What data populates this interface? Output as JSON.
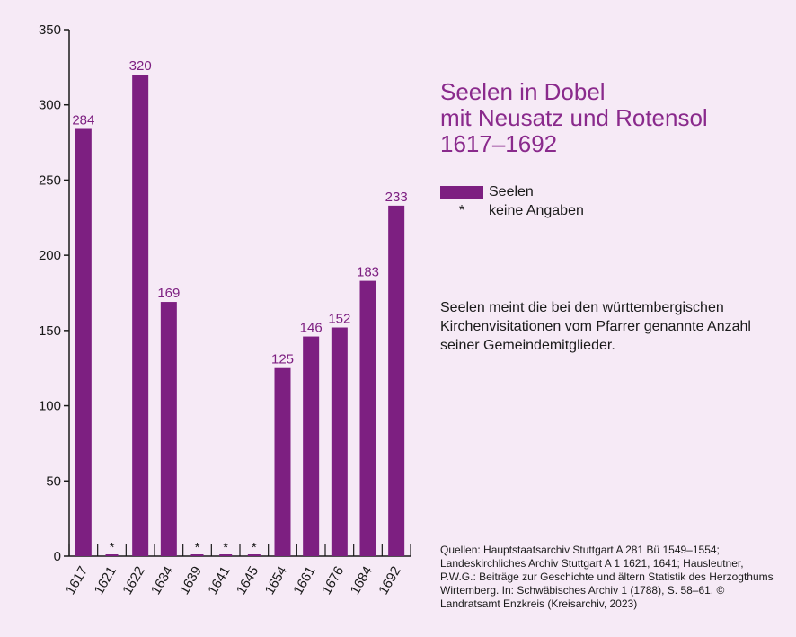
{
  "chart_data": {
    "type": "bar",
    "title": [
      "Seelen in Dobel",
      "mit Neusatz und Rotensol",
      "1617–1692"
    ],
    "categories": [
      "1617",
      "1621",
      "1622",
      "1634",
      "1639",
      "1641",
      "1645",
      "1654",
      "1661",
      "1676",
      "1684",
      "1692"
    ],
    "series": [
      {
        "name": "Seelen",
        "values": [
          284,
          null,
          320,
          169,
          null,
          null,
          null,
          125,
          146,
          152,
          183,
          233
        ]
      }
    ],
    "missing_marker": "*",
    "ylim": [
      0,
      350
    ],
    "yticks": [
      0,
      50,
      100,
      150,
      200,
      250,
      300,
      350
    ],
    "xlabel": "",
    "ylabel": "",
    "grid": false,
    "bar_color": "#7d1f81"
  },
  "title_color": "#8a2a8c",
  "background": "#f6eaf6",
  "legend": {
    "items": [
      {
        "swatch": "bar",
        "label": "Seelen"
      },
      {
        "swatch": "star",
        "symbol": "*",
        "label": "keine Angaben"
      }
    ]
  },
  "note": "Seelen meint die bei den württembergischen Kirchenvisitationen vom Pfarrer genannte Anzahl seiner Gemeindemitglieder.",
  "sources": "Quellen: Hauptstaatsarchiv Stuttgart A 281 Bü 1549–1554; Landeskirchliches Archiv Stuttgart A 1 1621, 1641; Hausleutner, P.W.G.: Beiträge zur Geschichte und ältern Statistik des Herzogthums Wirtemberg. In: Schwäbisches Archiv 1 (1788), S. 58–61. © Landratsamt Enzkreis (Kreisarchiv, 2023)"
}
